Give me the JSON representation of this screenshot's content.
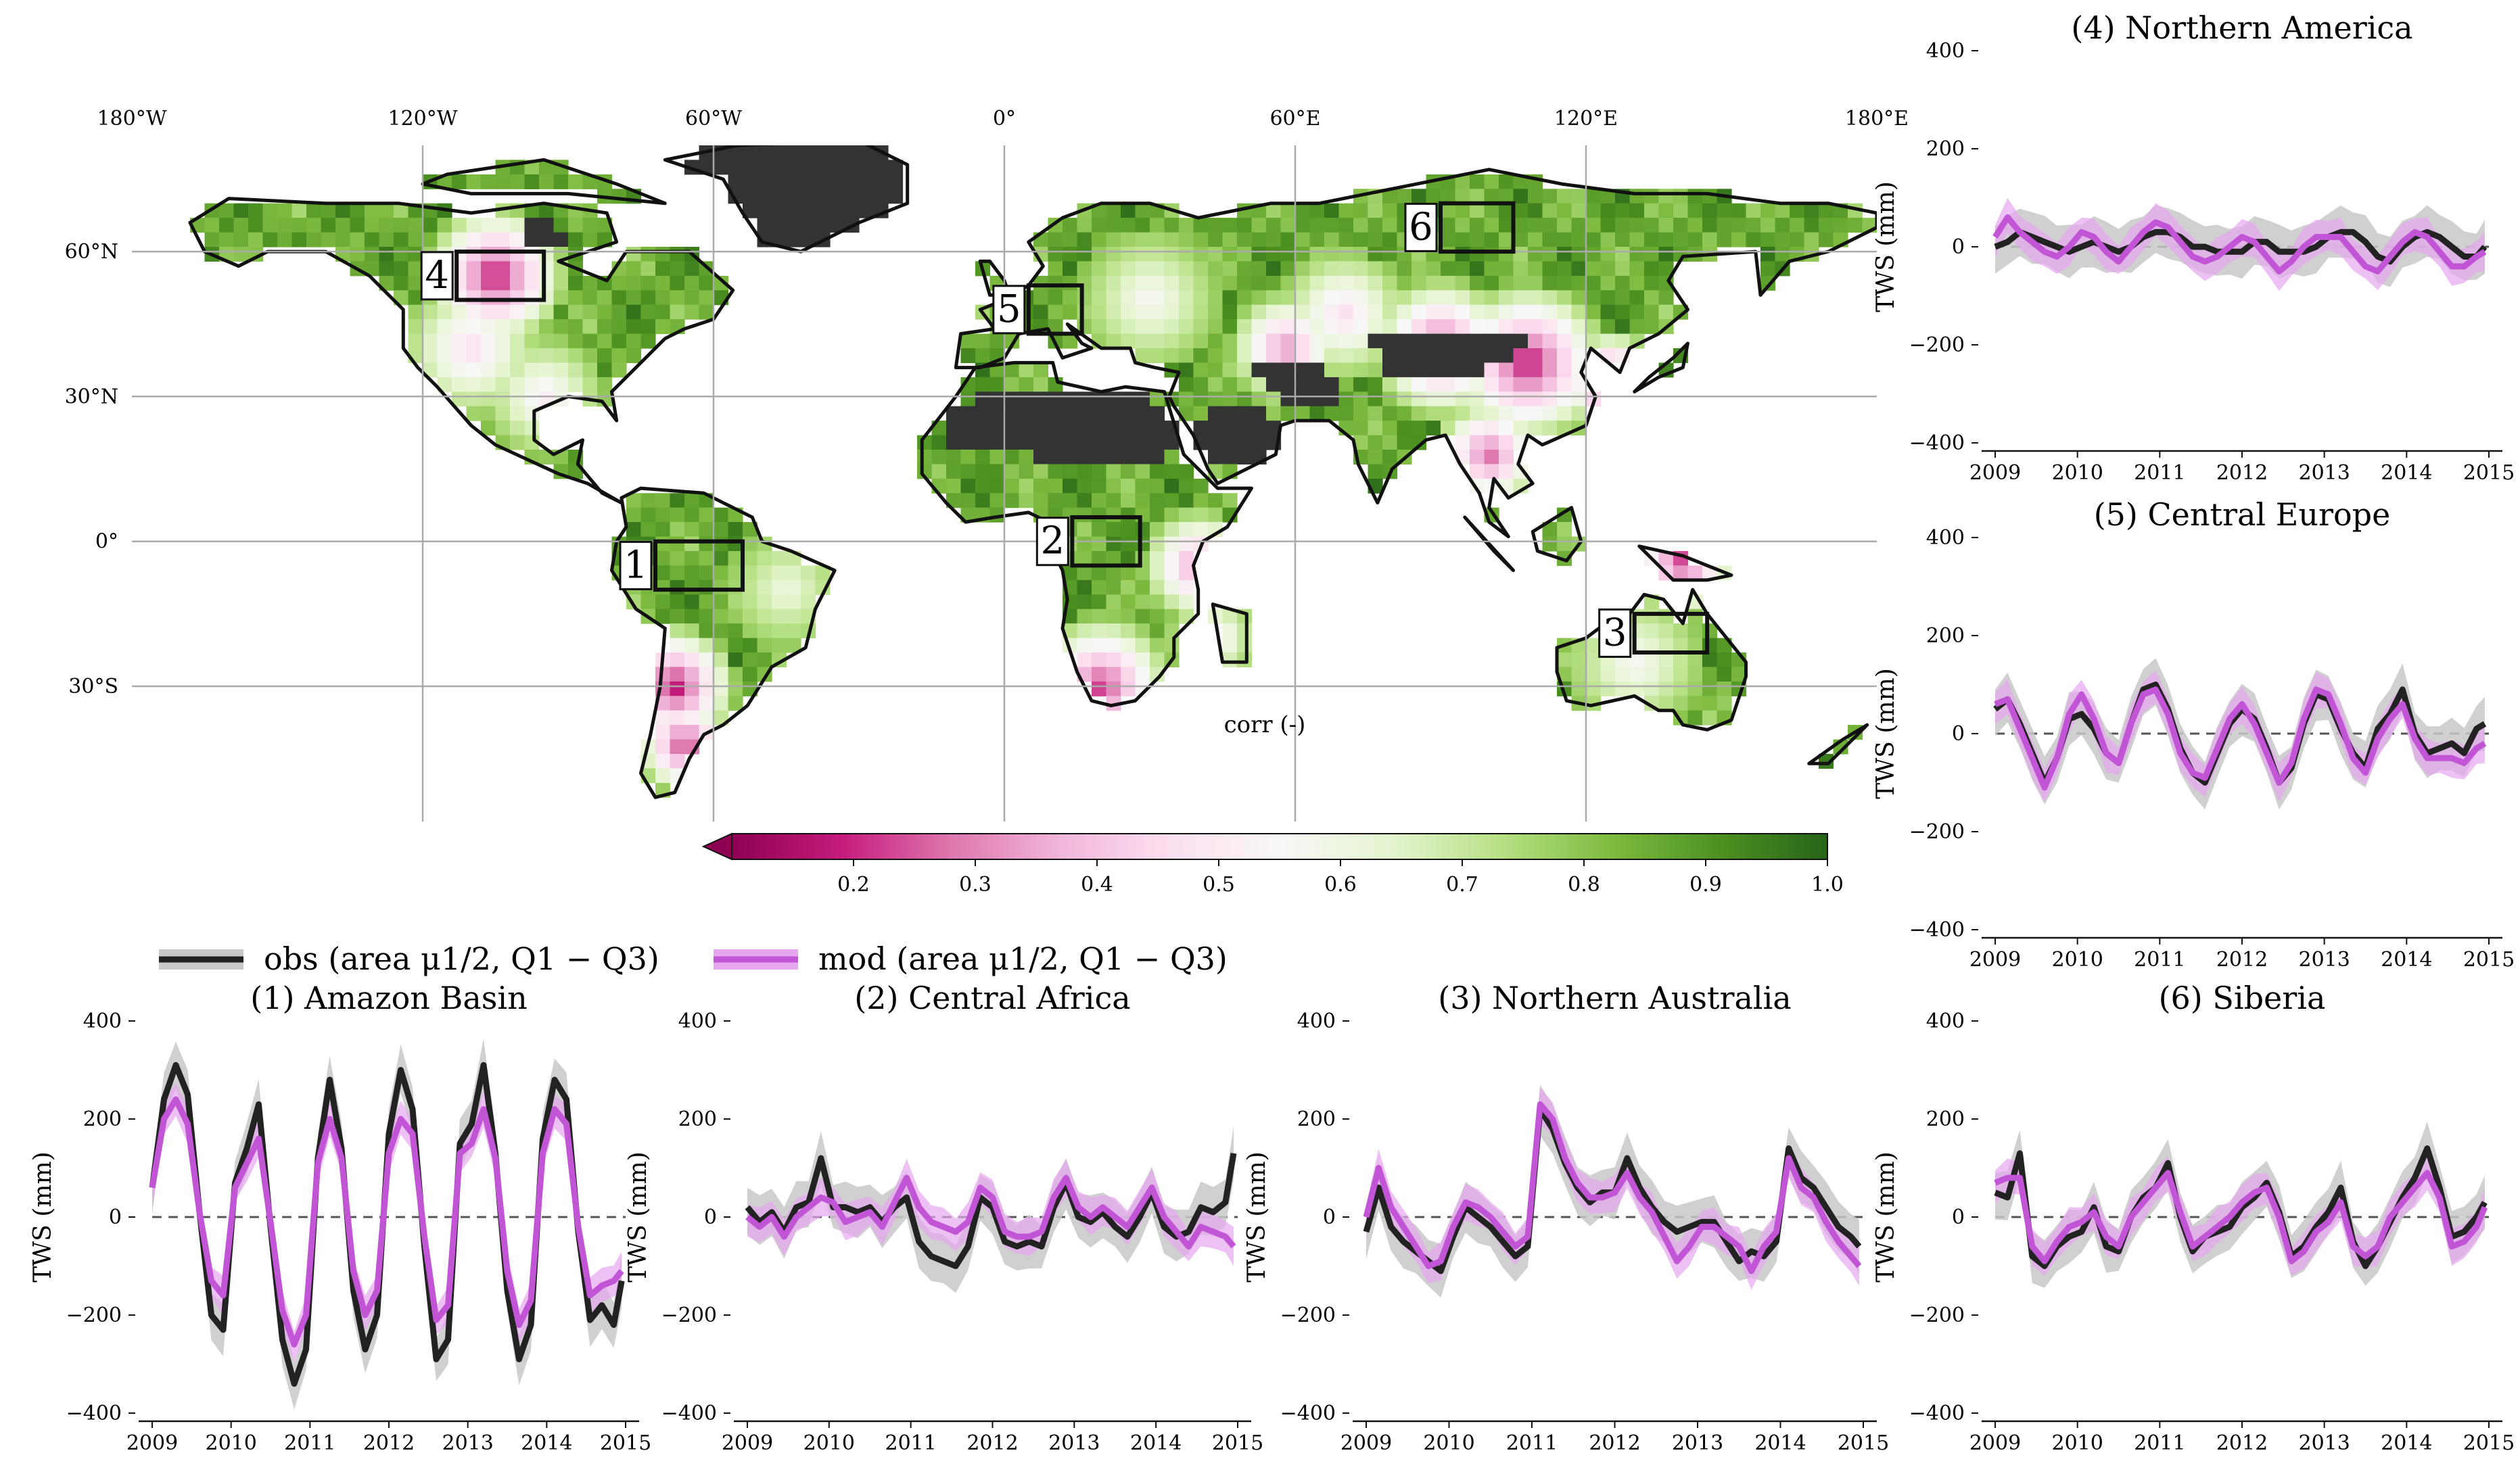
{
  "colors": {
    "obs": "#222222",
    "obs_band": "#c8c8c8",
    "mod": "#c155d6",
    "mod_band": "#e7a7ef",
    "land_na": "#333333",
    "cmap": [
      "#8e0152",
      "#c51b7d",
      "#de77ae",
      "#f1b6da",
      "#fde0ef",
      "#f7f7f7",
      "#e6f5d0",
      "#b8e186",
      "#7fbc41",
      "#4d9221",
      "#276419"
    ]
  },
  "map": {
    "lon_labels": [
      "180°W",
      "120°W",
      "60°W",
      "0°",
      "60°E",
      "120°E",
      "180°E"
    ],
    "lat_labels": [
      "60°N",
      "30°N",
      "0°",
      "30°S"
    ],
    "colorbar_label": "corr (-)",
    "colorbar_ticks": [
      "0.2",
      "0.3",
      "0.4",
      "0.5",
      "0.6",
      "0.7",
      "0.8",
      "0.9",
      "1.0"
    ],
    "regions": [
      {
        "id": "1",
        "lon": [
          -72,
          -54
        ],
        "lat": [
          -10,
          0
        ]
      },
      {
        "id": "2",
        "lon": [
          14,
          28
        ],
        "lat": [
          -5,
          5
        ]
      },
      {
        "id": "3",
        "lon": [
          130,
          145
        ],
        "lat": [
          -23,
          -15
        ]
      },
      {
        "id": "4",
        "lon": [
          -113,
          -95
        ],
        "lat": [
          50,
          60
        ]
      },
      {
        "id": "5",
        "lon": [
          5,
          16
        ],
        "lat": [
          43,
          53
        ]
      },
      {
        "id": "6",
        "lon": [
          90,
          105
        ],
        "lat": [
          60,
          70
        ]
      }
    ]
  },
  "legend": {
    "obs_label": "obs (area μ1/2, Q1 − Q3)",
    "mod_label": "mod (area μ1/2, Q1 − Q3)"
  },
  "chart_data": [
    {
      "type": "line",
      "title": "(1) Amazon Basin",
      "ylabel": "TWS (mm)",
      "xlim": [
        2009,
        2015
      ],
      "ylim": [
        -400,
        400
      ],
      "xticks": [
        "2009",
        "2010",
        "2011",
        "2012",
        "2013",
        "2014",
        "2015"
      ],
      "yticks": [
        "−400",
        "−200",
        "0",
        "200",
        "400"
      ],
      "x": [
        2009.0,
        2009.15,
        2009.3,
        2009.45,
        2009.6,
        2009.75,
        2009.9,
        2010.05,
        2010.2,
        2010.35,
        2010.5,
        2010.65,
        2010.8,
        2010.95,
        2011.1,
        2011.25,
        2011.4,
        2011.55,
        2011.7,
        2011.85,
        2012.0,
        2012.15,
        2012.3,
        2012.45,
        2012.6,
        2012.75,
        2012.9,
        2013.05,
        2013.2,
        2013.35,
        2013.5,
        2013.65,
        2013.8,
        2013.95,
        2014.1,
        2014.25,
        2014.4,
        2014.55,
        2014.7,
        2014.85,
        2014.95
      ],
      "series": [
        {
          "name": "obs",
          "values": [
            60,
            240,
            310,
            250,
            10,
            -200,
            -230,
            70,
            140,
            230,
            -20,
            -250,
            -340,
            -270,
            120,
            280,
            140,
            -150,
            -270,
            -200,
            170,
            300,
            220,
            -60,
            -290,
            -250,
            150,
            190,
            310,
            130,
            -150,
            -290,
            -220,
            160,
            280,
            240,
            -30,
            -210,
            -180,
            -220,
            -130
          ]
        },
        {
          "name": "mod",
          "values": [
            60,
            200,
            240,
            190,
            10,
            -130,
            -160,
            60,
            110,
            160,
            -10,
            -190,
            -260,
            -200,
            110,
            200,
            120,
            -110,
            -200,
            -150,
            130,
            200,
            170,
            -40,
            -210,
            -180,
            130,
            150,
            220,
            120,
            -110,
            -220,
            -170,
            130,
            220,
            190,
            -20,
            -160,
            -140,
            -130,
            -110
          ]
        }
      ]
    },
    {
      "type": "line",
      "title": "(2) Central Africa",
      "ylabel": "TWS (mm)",
      "xlim": [
        2009,
        2015
      ],
      "ylim": [
        -400,
        400
      ],
      "xticks": [
        "2009",
        "2010",
        "2011",
        "2012",
        "2013",
        "2014",
        "2015"
      ],
      "yticks": [
        "−400",
        "−200",
        "0",
        "200",
        "400"
      ],
      "x": [
        2009.0,
        2009.15,
        2009.3,
        2009.45,
        2009.6,
        2009.75,
        2009.9,
        2010.05,
        2010.2,
        2010.35,
        2010.5,
        2010.65,
        2010.8,
        2010.95,
        2011.1,
        2011.25,
        2011.4,
        2011.55,
        2011.7,
        2011.85,
        2012.0,
        2012.15,
        2012.3,
        2012.45,
        2012.6,
        2012.75,
        2012.9,
        2013.05,
        2013.2,
        2013.35,
        2013.5,
        2013.65,
        2013.8,
        2013.95,
        2014.1,
        2014.25,
        2014.4,
        2014.55,
        2014.7,
        2014.85,
        2014.95
      ],
      "series": [
        {
          "name": "obs",
          "values": [
            20,
            -10,
            10,
            -30,
            20,
            30,
            120,
            20,
            20,
            10,
            20,
            -10,
            20,
            40,
            -50,
            -80,
            -90,
            -100,
            -60,
            40,
            20,
            -50,
            -60,
            -50,
            -60,
            20,
            70,
            0,
            -10,
            10,
            -20,
            -40,
            0,
            50,
            -20,
            -40,
            -30,
            20,
            10,
            30,
            130
          ]
        },
        {
          "name": "mod",
          "values": [
            0,
            -20,
            0,
            -40,
            0,
            20,
            40,
            30,
            -10,
            0,
            10,
            -20,
            30,
            80,
            20,
            -10,
            -20,
            -30,
            -10,
            60,
            40,
            -30,
            -40,
            -40,
            -30,
            40,
            80,
            20,
            0,
            20,
            0,
            -20,
            20,
            60,
            0,
            -30,
            -60,
            -20,
            -30,
            -40,
            -60
          ]
        }
      ]
    },
    {
      "type": "line",
      "title": "(3) Northern Australia",
      "ylabel": "TWS (mm)",
      "xlim": [
        2009,
        2015
      ],
      "ylim": [
        -400,
        400
      ],
      "xticks": [
        "2009",
        "2010",
        "2011",
        "2012",
        "2013",
        "2014",
        "2015"
      ],
      "yticks": [
        "−400",
        "−200",
        "0",
        "200",
        "400"
      ],
      "x": [
        2009.0,
        2009.15,
        2009.3,
        2009.45,
        2009.6,
        2009.75,
        2009.9,
        2010.05,
        2010.2,
        2010.35,
        2010.5,
        2010.65,
        2010.8,
        2010.95,
        2011.1,
        2011.25,
        2011.4,
        2011.55,
        2011.7,
        2011.85,
        2012.0,
        2012.15,
        2012.3,
        2012.45,
        2012.6,
        2012.75,
        2012.9,
        2013.05,
        2013.2,
        2013.35,
        2013.5,
        2013.65,
        2013.8,
        2013.95,
        2014.1,
        2014.25,
        2014.4,
        2014.55,
        2014.7,
        2014.85,
        2014.95
      ],
      "series": [
        {
          "name": "obs",
          "values": [
            -30,
            60,
            -20,
            -50,
            -70,
            -90,
            -110,
            -40,
            20,
            0,
            -20,
            -50,
            -80,
            -60,
            220,
            180,
            110,
            60,
            30,
            50,
            50,
            120,
            60,
            20,
            -10,
            -30,
            -20,
            -10,
            -10,
            -50,
            -90,
            -70,
            -80,
            -50,
            140,
            80,
            60,
            20,
            -20,
            -40,
            -60
          ]
        },
        {
          "name": "mod",
          "values": [
            0,
            100,
            20,
            -20,
            -60,
            -100,
            -90,
            -20,
            30,
            20,
            0,
            -30,
            -60,
            -40,
            230,
            200,
            120,
            70,
            40,
            40,
            50,
            90,
            40,
            10,
            -40,
            -90,
            -60,
            -20,
            -20,
            -40,
            -60,
            -110,
            -60,
            -30,
            120,
            60,
            40,
            -10,
            -50,
            -80,
            -100
          ]
        }
      ]
    },
    {
      "type": "line",
      "title": "(4) Northern America",
      "ylabel": "TWS (mm)",
      "xlim": [
        2009,
        2015
      ],
      "ylim": [
        -400,
        400
      ],
      "xticks": [
        "2009",
        "2010",
        "2011",
        "2012",
        "2013",
        "2014",
        "2015"
      ],
      "yticks": [
        "−400",
        "−200",
        "0",
        "200",
        "400"
      ],
      "x": [
        2009.0,
        2009.15,
        2009.3,
        2009.45,
        2009.6,
        2009.75,
        2009.9,
        2010.05,
        2010.2,
        2010.35,
        2010.5,
        2010.65,
        2010.8,
        2010.95,
        2011.1,
        2011.25,
        2011.4,
        2011.55,
        2011.7,
        2011.85,
        2012.0,
        2012.15,
        2012.3,
        2012.45,
        2012.6,
        2012.75,
        2012.9,
        2013.05,
        2013.2,
        2013.35,
        2013.5,
        2013.65,
        2013.8,
        2013.95,
        2014.1,
        2014.25,
        2014.4,
        2014.55,
        2014.7,
        2014.85,
        2014.95
      ],
      "series": [
        {
          "name": "obs",
          "values": [
            0,
            10,
            30,
            20,
            10,
            0,
            -10,
            0,
            10,
            0,
            -10,
            0,
            20,
            30,
            30,
            20,
            0,
            0,
            -10,
            -10,
            -10,
            10,
            10,
            -10,
            -10,
            -10,
            0,
            20,
            30,
            30,
            10,
            -20,
            -30,
            0,
            20,
            30,
            20,
            0,
            -20,
            -20,
            0
          ]
        },
        {
          "name": "mod",
          "values": [
            20,
            60,
            30,
            10,
            -10,
            -20,
            0,
            30,
            20,
            -10,
            -30,
            0,
            30,
            50,
            40,
            10,
            -20,
            -30,
            -20,
            0,
            20,
            10,
            -20,
            -50,
            -30,
            0,
            20,
            20,
            20,
            -10,
            -40,
            -50,
            -20,
            10,
            30,
            20,
            -10,
            -40,
            -40,
            -20,
            -10
          ]
        }
      ]
    },
    {
      "type": "line",
      "title": "(5) Central Europe",
      "ylabel": "TWS (mm)",
      "xlim": [
        2009,
        2015
      ],
      "ylim": [
        -400,
        400
      ],
      "xticks": [
        "2009",
        "2010",
        "2011",
        "2012",
        "2013",
        "2014",
        "2015"
      ],
      "yticks": [
        "−400",
        "−200",
        "0",
        "200",
        "400"
      ],
      "x": [
        2009.0,
        2009.15,
        2009.3,
        2009.45,
        2009.6,
        2009.75,
        2009.9,
        2010.05,
        2010.2,
        2010.35,
        2010.5,
        2010.65,
        2010.8,
        2010.95,
        2011.1,
        2011.25,
        2011.4,
        2011.55,
        2011.7,
        2011.85,
        2012.0,
        2012.15,
        2012.3,
        2012.45,
        2012.6,
        2012.75,
        2012.9,
        2013.05,
        2013.2,
        2013.35,
        2013.5,
        2013.65,
        2013.8,
        2013.95,
        2014.1,
        2014.25,
        2014.4,
        2014.55,
        2014.7,
        2014.85,
        2014.95
      ],
      "series": [
        {
          "name": "obs",
          "values": [
            50,
            70,
            20,
            -40,
            -100,
            -50,
            30,
            40,
            10,
            -40,
            -60,
            20,
            90,
            100,
            50,
            -30,
            -80,
            -100,
            -40,
            20,
            50,
            30,
            -30,
            -100,
            -70,
            20,
            80,
            70,
            10,
            -40,
            -70,
            10,
            40,
            90,
            0,
            -40,
            -30,
            -20,
            -40,
            10,
            20
          ]
        },
        {
          "name": "mod",
          "values": [
            60,
            70,
            10,
            -50,
            -110,
            -50,
            40,
            80,
            30,
            -40,
            -60,
            20,
            80,
            90,
            40,
            -40,
            -80,
            -90,
            -30,
            30,
            60,
            20,
            -40,
            -100,
            -60,
            30,
            90,
            80,
            20,
            -50,
            -80,
            -10,
            30,
            60,
            -10,
            -50,
            -50,
            -50,
            -60,
            -30,
            -20
          ]
        }
      ]
    },
    {
      "type": "line",
      "title": "(6) Siberia",
      "ylabel": "TWS (mm)",
      "xlim": [
        2009,
        2015
      ],
      "ylim": [
        -400,
        400
      ],
      "xticks": [
        "2009",
        "2010",
        "2011",
        "2012",
        "2013",
        "2014",
        "2015"
      ],
      "yticks": [
        "−400",
        "−200",
        "0",
        "200",
        "400"
      ],
      "x": [
        2009.0,
        2009.15,
        2009.3,
        2009.45,
        2009.6,
        2009.75,
        2009.9,
        2010.05,
        2010.2,
        2010.35,
        2010.5,
        2010.65,
        2010.8,
        2010.95,
        2011.1,
        2011.25,
        2011.4,
        2011.55,
        2011.7,
        2011.85,
        2012.0,
        2012.15,
        2012.3,
        2012.45,
        2012.6,
        2012.75,
        2012.9,
        2013.05,
        2013.2,
        2013.35,
        2013.5,
        2013.65,
        2013.8,
        2013.95,
        2014.1,
        2014.25,
        2014.4,
        2014.55,
        2014.7,
        2014.85,
        2014.95
      ],
      "series": [
        {
          "name": "obs",
          "values": [
            50,
            40,
            130,
            -80,
            -100,
            -60,
            -40,
            -30,
            20,
            -60,
            -70,
            0,
            40,
            60,
            110,
            0,
            -70,
            -40,
            -30,
            -20,
            20,
            40,
            70,
            10,
            -80,
            -60,
            -20,
            10,
            60,
            -50,
            -100,
            -60,
            -10,
            40,
            80,
            140,
            60,
            -40,
            -30,
            0,
            30
          ]
        },
        {
          "name": "mod",
          "values": [
            70,
            80,
            80,
            -60,
            -90,
            -50,
            -20,
            -10,
            10,
            -40,
            -60,
            0,
            30,
            60,
            90,
            10,
            -60,
            -40,
            -20,
            0,
            30,
            50,
            60,
            0,
            -90,
            -70,
            -30,
            -10,
            30,
            -60,
            -80,
            -60,
            0,
            30,
            60,
            90,
            40,
            -60,
            -50,
            -20,
            20
          ]
        }
      ]
    }
  ]
}
